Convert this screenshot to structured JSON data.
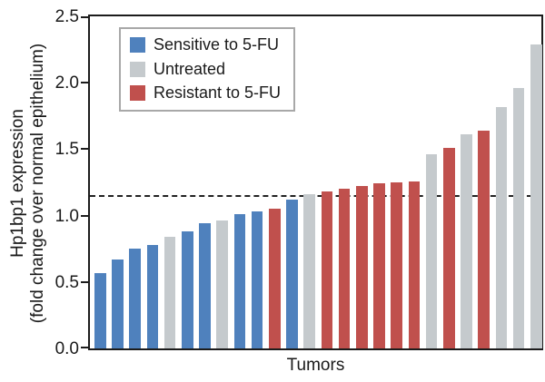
{
  "figure": {
    "x_axis_label": "Tumors",
    "y_axis_label_line1": "Hp1bp1 expression",
    "y_axis_label_line2": "(fold change over normal epithelium)"
  },
  "legend": {
    "items": [
      {
        "key": "sensitive",
        "label": "Sensitive to 5-FU",
        "color": "#4F81BD"
      },
      {
        "key": "untreated",
        "label": "Untreated",
        "color": "#C5CACD"
      },
      {
        "key": "resistant",
        "label": "Resistant to 5-FU",
        "color": "#C0504D"
      }
    ]
  },
  "chart_data": {
    "type": "bar",
    "title": "",
    "xlabel": "Tumors",
    "ylabel": "Hp1bp1 expression (fold change over normal epithelium)",
    "ylim": [
      0,
      2.5
    ],
    "yticks": [
      0,
      0.5,
      1,
      1.5,
      2,
      2.5
    ],
    "ytick_format_decimals": 1,
    "grid": false,
    "legend_position": "upper left inside",
    "reference_line": {
      "value": 1.15,
      "style": "dashed",
      "color": "#222222"
    },
    "colors": {
      "sensitive": "#4F81BD",
      "untreated": "#C5CACD",
      "resistant": "#C0504D"
    },
    "bars": [
      {
        "group": "sensitive",
        "value": 0.57
      },
      {
        "group": "sensitive",
        "value": 0.67
      },
      {
        "group": "sensitive",
        "value": 0.75
      },
      {
        "group": "sensitive",
        "value": 0.78
      },
      {
        "group": "untreated",
        "value": 0.84
      },
      {
        "group": "sensitive",
        "value": 0.88
      },
      {
        "group": "sensitive",
        "value": 0.94
      },
      {
        "group": "untreated",
        "value": 0.96
      },
      {
        "group": "sensitive",
        "value": 1.01
      },
      {
        "group": "sensitive",
        "value": 1.03
      },
      {
        "group": "resistant",
        "value": 1.05
      },
      {
        "group": "sensitive",
        "value": 1.12
      },
      {
        "group": "untreated",
        "value": 1.16
      },
      {
        "group": "resistant",
        "value": 1.18
      },
      {
        "group": "resistant",
        "value": 1.2
      },
      {
        "group": "resistant",
        "value": 1.22
      },
      {
        "group": "resistant",
        "value": 1.24
      },
      {
        "group": "resistant",
        "value": 1.25
      },
      {
        "group": "resistant",
        "value": 1.26
      },
      {
        "group": "untreated",
        "value": 1.46
      },
      {
        "group": "resistant",
        "value": 1.51
      },
      {
        "group": "untreated",
        "value": 1.61
      },
      {
        "group": "resistant",
        "value": 1.64
      },
      {
        "group": "untreated",
        "value": 1.82
      },
      {
        "group": "untreated",
        "value": 1.96
      },
      {
        "group": "untreated",
        "value": 2.29
      }
    ]
  }
}
